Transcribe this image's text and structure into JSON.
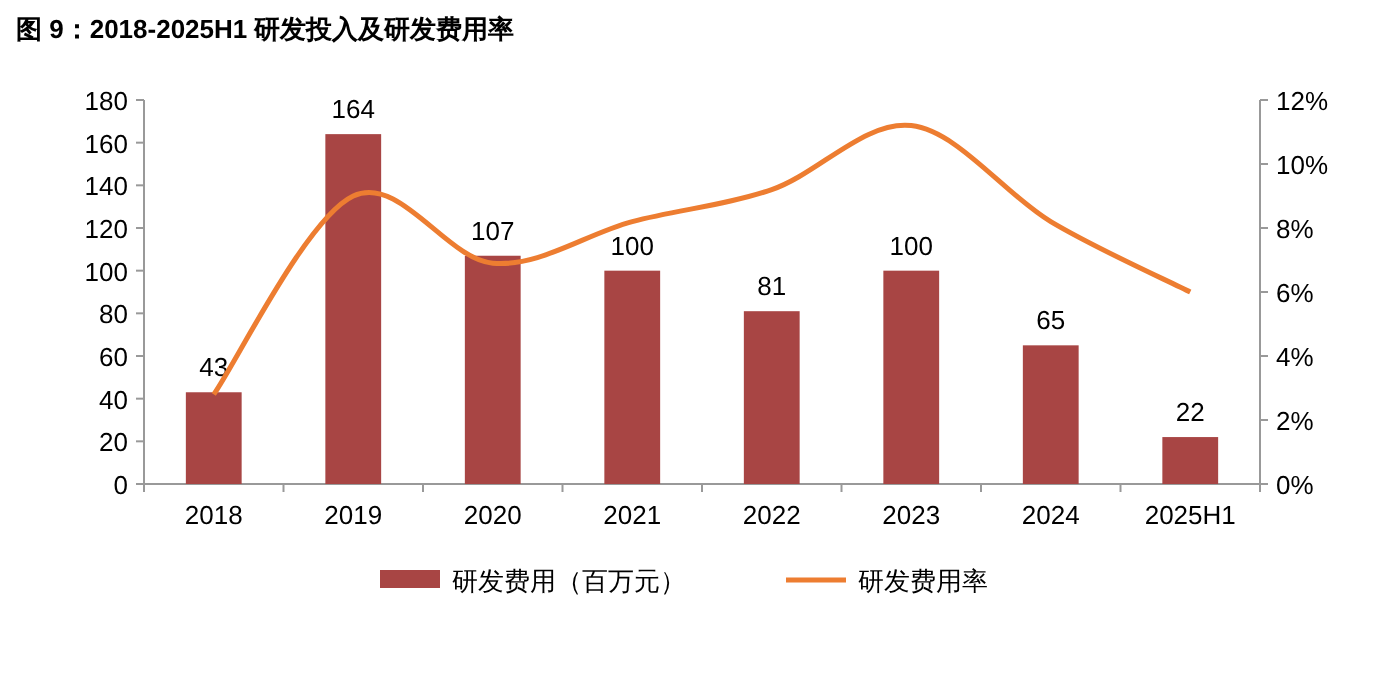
{
  "chart_data": {
    "type": "bar",
    "title": "图 9：2018-2025H1 研发投入及研发费用率",
    "categories": [
      "2018",
      "2019",
      "2020",
      "2021",
      "2022",
      "2023",
      "2024",
      "2025H1"
    ],
    "series": [
      {
        "name": "研发费用（百万元）",
        "color": "#a84544",
        "values": [
          43,
          164,
          107,
          100,
          81,
          100,
          65,
          22
        ],
        "value_labels": [
          "43",
          "164",
          "107",
          "100",
          "81",
          "100",
          "65",
          "22"
        ]
      },
      {
        "name": "研发费用率",
        "type": "line",
        "axis": "y2",
        "color": "#ed7d31",
        "marker": "none",
        "line_style": "solid",
        "values": [
          2.8,
          9.0,
          6.9,
          8.2,
          9.2,
          11.2,
          8.2,
          6.0
        ]
      }
    ],
    "ylim": [
      0,
      180
    ],
    "yticks": [
      0,
      20,
      40,
      60,
      80,
      100,
      120,
      140,
      160,
      180
    ],
    "y2lim": [
      0,
      12
    ],
    "y2ticks": [
      {
        "value": 0,
        "label": "0%"
      },
      {
        "value": 2,
        "label": "2%"
      },
      {
        "value": 4,
        "label": "4%"
      },
      {
        "value": 6,
        "label": "6%"
      },
      {
        "value": 8,
        "label": "8%"
      },
      {
        "value": 10,
        "label": "10%"
      },
      {
        "value": 12,
        "label": "12%"
      }
    ],
    "legend": "bottom",
    "grid": false
  }
}
